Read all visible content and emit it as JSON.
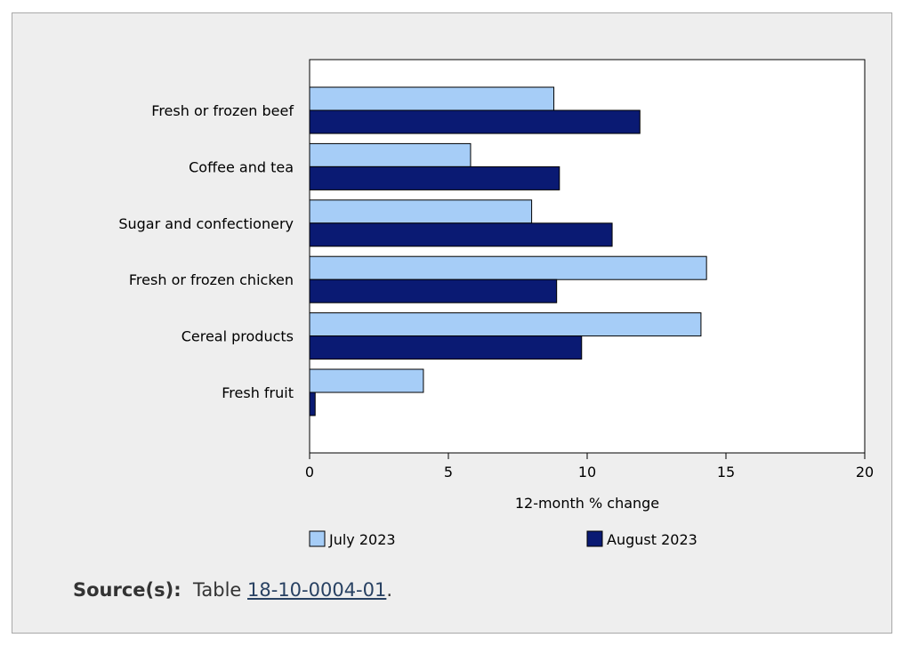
{
  "chart_data": {
    "type": "bar",
    "orientation": "horizontal",
    "categories": [
      "Fresh or frozen beef",
      "Coffee and tea",
      "Sugar and confectionery",
      "Fresh or frozen chicken",
      "Cereal products",
      "Fresh fruit"
    ],
    "series": [
      {
        "name": "July 2023",
        "color": "#a6cdf7",
        "values": [
          8.8,
          5.8,
          8.0,
          14.3,
          14.1,
          4.1
        ]
      },
      {
        "name": "August 2023",
        "color": "#0a1a73",
        "values": [
          11.9,
          9.0,
          10.9,
          8.9,
          9.8,
          0.2
        ]
      }
    ],
    "xlabel": "12-month % change",
    "xlim": [
      0,
      20
    ],
    "xticks": [
      "0",
      "5",
      "10",
      "15",
      "20"
    ],
    "legend_position": "bottom",
    "grid": false
  },
  "source": {
    "label": "Source(s):",
    "prefix": "Table",
    "link_text": "18-10-0004-01",
    "suffix": "."
  }
}
